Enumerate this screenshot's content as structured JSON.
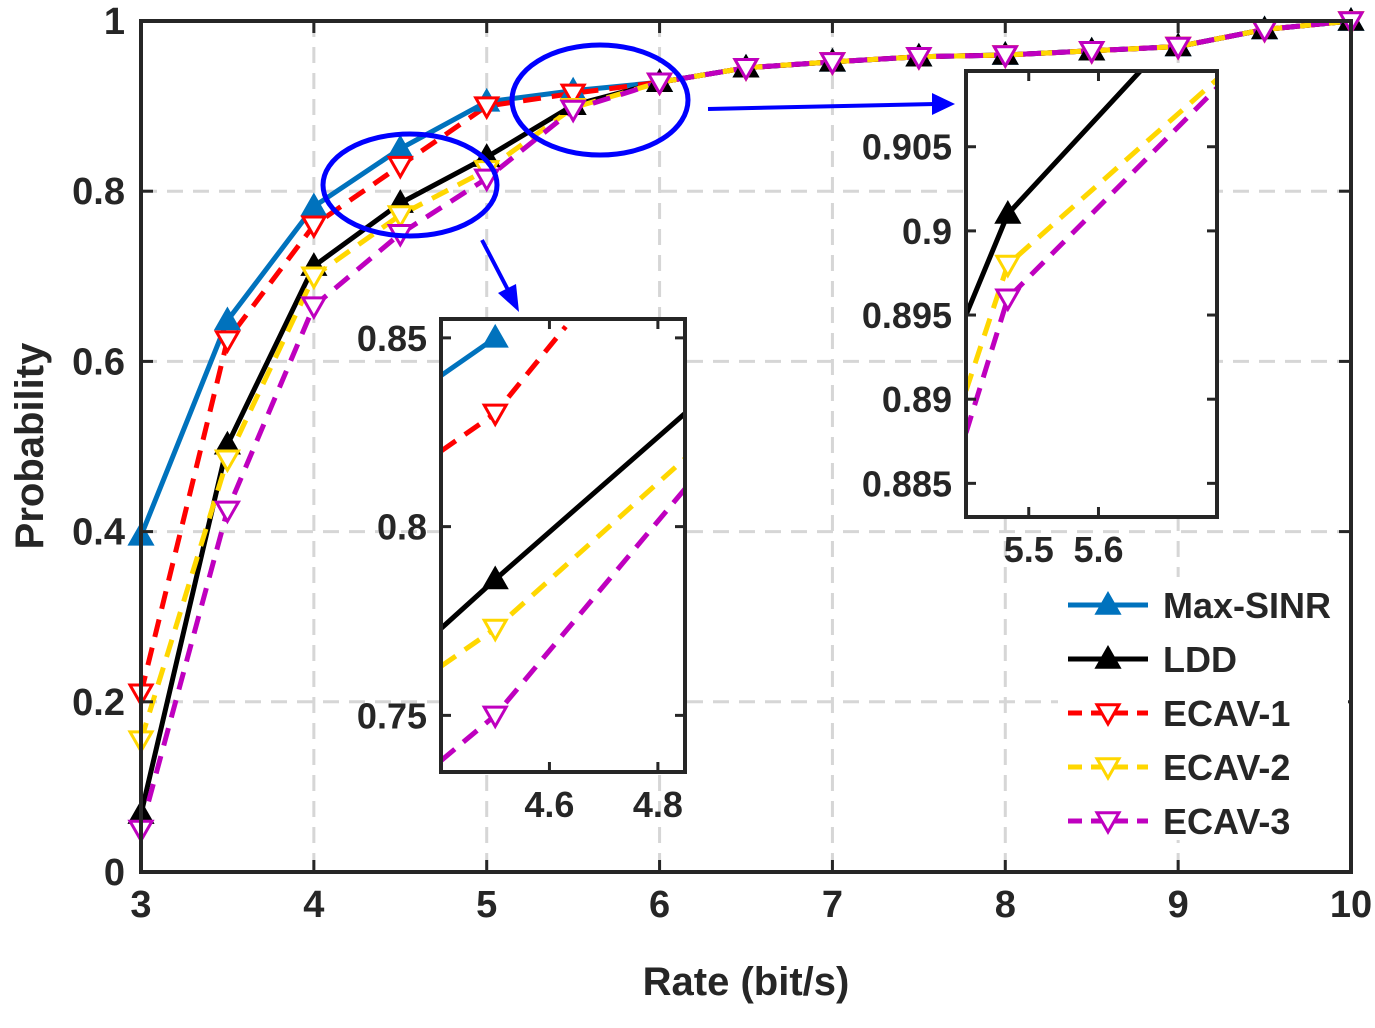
{
  "chart_data": [
    {
      "type": "line",
      "xlabel": "Rate (bit/s)",
      "ylabel": "Probability",
      "xlim": [
        3,
        10
      ],
      "ylim": [
        0,
        1
      ],
      "xticks": [
        3,
        4,
        5,
        6,
        7,
        8,
        9,
        10
      ],
      "yticks": [
        0,
        0.2,
        0.4,
        0.6,
        0.8,
        1
      ],
      "xtick_labels": [
        "3",
        "4",
        "5",
        "6",
        "7",
        "8",
        "9",
        "10"
      ],
      "ytick_labels": [
        "0",
        "0.2",
        "0.4",
        "0.6",
        "0.8",
        "1"
      ],
      "grid": true,
      "legend_position": "bottom-right",
      "x": [
        3,
        3.5,
        4,
        4.5,
        5,
        5.5,
        6,
        6.5,
        7,
        7.5,
        8,
        8.5,
        9,
        9.5,
        10
      ],
      "series": [
        {
          "name": "Max-SINR",
          "color": "#0072bd",
          "dash": "solid",
          "marker": "triangle-up",
          "marker_fill": "#0072bd",
          "values": [
            0.395,
            0.648,
            0.782,
            0.85,
            0.905,
            0.918,
            0.928,
            0.945,
            0.952,
            0.958,
            0.96,
            0.965,
            0.97,
            0.99,
            1.0
          ]
        },
        {
          "name": "LDD",
          "color": "#000000",
          "dash": "solid",
          "marker": "triangle-up",
          "marker_fill": "#000000",
          "values": [
            0.068,
            0.502,
            0.712,
            0.786,
            0.84,
            0.901,
            0.928,
            0.945,
            0.952,
            0.958,
            0.96,
            0.965,
            0.97,
            0.99,
            1.0
          ]
        },
        {
          "name": "ECAV-1",
          "color": "#ff0000",
          "dash": "dashed",
          "marker": "triangle-down",
          "marker_fill": "#ffffff",
          "values": [
            0.21,
            0.625,
            0.76,
            0.83,
            0.9,
            0.915,
            0.928,
            0.945,
            0.952,
            0.958,
            0.96,
            0.965,
            0.97,
            0.99,
            1.0
          ]
        },
        {
          "name": "ECAV-2",
          "color": "#ffd700",
          "dash": "dashed",
          "marker": "triangle-down",
          "marker_fill": "#ffffff",
          "values": [
            0.155,
            0.485,
            0.7,
            0.772,
            0.825,
            0.898,
            0.928,
            0.945,
            0.952,
            0.958,
            0.96,
            0.965,
            0.97,
            0.99,
            1.0
          ]
        },
        {
          "name": "ECAV-3",
          "color": "#bf00bf",
          "dash": "dashed",
          "marker": "triangle-down",
          "marker_fill": "#ffffff",
          "values": [
            0.05,
            0.425,
            0.665,
            0.75,
            0.815,
            0.896,
            0.928,
            0.945,
            0.952,
            0.958,
            0.96,
            0.965,
            0.97,
            0.99,
            1.0
          ]
        }
      ]
    },
    {
      "type": "line",
      "xlim": [
        4.4,
        4.85
      ],
      "ylim": [
        0.735,
        0.855
      ],
      "xticks": [
        4.6,
        4.8
      ],
      "yticks": [
        0.75,
        0.8,
        0.85
      ],
      "xtick_labels": [
        "4.6",
        "4.8"
      ],
      "ytick_labels": [
        "0.75",
        "0.8",
        "0.85"
      ],
      "series": [
        {
          "name": "Max-SINR",
          "x": [
            4.4,
            4.5
          ],
          "values": [
            0.84,
            0.85
          ],
          "marker_points": [
            [
              4.5,
              0.85
            ]
          ]
        },
        {
          "name": "ECAV-1",
          "x": [
            4.4,
            4.5,
            4.63
          ],
          "values": [
            0.82,
            0.83,
            0.853
          ],
          "marker_points": [
            [
              4.5,
              0.83
            ]
          ]
        },
        {
          "name": "LDD",
          "x": [
            4.4,
            4.5,
            4.85
          ],
          "values": [
            0.773,
            0.786,
            0.83
          ],
          "marker_points": [
            [
              4.5,
              0.786
            ]
          ]
        },
        {
          "name": "ECAV-2",
          "x": [
            4.4,
            4.5,
            4.85
          ],
          "values": [
            0.763,
            0.773,
            0.818
          ],
          "marker_points": [
            [
              4.5,
              0.773
            ]
          ]
        },
        {
          "name": "ECAV-3",
          "x": [
            4.4,
            4.5,
            4.85
          ],
          "values": [
            0.738,
            0.75,
            0.81
          ],
          "marker_points": [
            [
              4.5,
              0.75
            ]
          ]
        }
      ]
    },
    {
      "type": "line",
      "xlim": [
        5.41,
        5.77
      ],
      "ylim": [
        0.883,
        0.9095
      ],
      "xticks": [
        5.5,
        5.6
      ],
      "yticks": [
        0.885,
        0.89,
        0.895,
        0.9,
        0.905
      ],
      "xtick_labels": [
        "5.5",
        "5.6"
      ],
      "ytick_labels": [
        "0.885",
        "0.89",
        "0.895",
        "0.9",
        "0.905"
      ],
      "series": [
        {
          "name": "LDD",
          "x": [
            5.41,
            5.47,
            5.66
          ],
          "values": [
            0.895,
            0.901,
            0.9095
          ],
          "marker_points": [
            [
              5.47,
              0.901
            ]
          ]
        },
        {
          "name": "ECAV-2",
          "x": [
            5.41,
            5.47,
            5.77
          ],
          "values": [
            0.8905,
            0.898,
            0.909
          ],
          "marker_points": [
            [
              5.47,
              0.898
            ]
          ]
        },
        {
          "name": "ECAV-3",
          "x": [
            5.41,
            5.47,
            5.77
          ],
          "values": [
            0.888,
            0.896,
            0.9085
          ],
          "marker_points": [
            [
              5.47,
              0.896
            ]
          ]
        }
      ]
    }
  ]
}
